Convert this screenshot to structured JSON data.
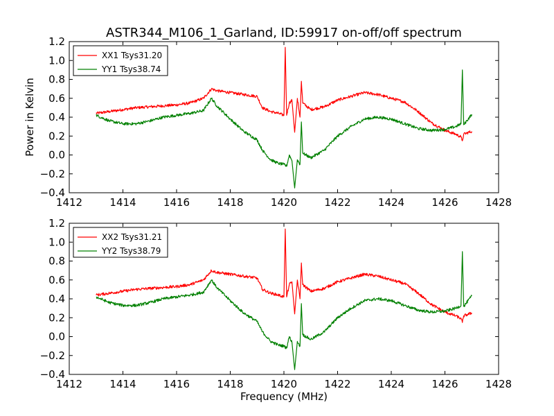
{
  "figure": {
    "title": "ASTR344_M106_1_Garland, ID:59917 on-off/off spectrum",
    "xlabel": "Frequency (MHz)",
    "ylabel": "Power in Kelvin"
  },
  "chart_data": [
    {
      "type": "line",
      "title": "ASTR344_M106_1_Garland, ID:59917 on-off/off spectrum",
      "xlabel": "",
      "ylabel": "Power in Kelvin",
      "xlim": [
        1412,
        1428
      ],
      "ylim": [
        -0.4,
        1.2
      ],
      "xticks": [
        "1412",
        "1414",
        "1416",
        "1418",
        "1420",
        "1422",
        "1424",
        "1426",
        "1428"
      ],
      "yticks": [
        "−0.4",
        "−0.2",
        "0.0",
        "0.2",
        "0.4",
        "0.6",
        "0.8",
        "1.0",
        "1.2"
      ],
      "grid": false,
      "legend_position": "top-left",
      "series": [
        {
          "name": "XX1 Tsys31.20",
          "color": "#ff0000",
          "x": [
            1413.0,
            1413.5,
            1414.0,
            1414.5,
            1415.0,
            1415.5,
            1416.0,
            1416.5,
            1417.0,
            1417.3,
            1417.5,
            1418.0,
            1418.5,
            1419.0,
            1419.2,
            1419.5,
            1419.8,
            1420.0,
            1420.05,
            1420.1,
            1420.2,
            1420.3,
            1420.4,
            1420.5,
            1420.6,
            1420.65,
            1420.7,
            1421.0,
            1421.5,
            1422.0,
            1422.5,
            1423.0,
            1423.5,
            1424.0,
            1424.5,
            1425.0,
            1425.5,
            1426.0,
            1426.4,
            1426.6,
            1426.65,
            1426.7,
            1427.0
          ],
          "y": [
            0.44,
            0.46,
            0.48,
            0.5,
            0.51,
            0.52,
            0.53,
            0.55,
            0.6,
            0.7,
            0.68,
            0.66,
            0.64,
            0.62,
            0.5,
            0.46,
            0.44,
            0.42,
            1.14,
            0.42,
            0.55,
            0.58,
            0.24,
            0.6,
            0.4,
            0.78,
            0.55,
            0.48,
            0.51,
            0.58,
            0.62,
            0.66,
            0.64,
            0.6,
            0.56,
            0.46,
            0.34,
            0.26,
            0.22,
            0.19,
            0.15,
            0.22,
            0.25
          ]
        },
        {
          "name": "YY1 Tsys38.74",
          "color": "#008000",
          "x": [
            1413.0,
            1413.5,
            1414.0,
            1414.5,
            1415.0,
            1415.5,
            1416.0,
            1416.5,
            1417.0,
            1417.3,
            1417.5,
            1418.0,
            1418.5,
            1419.0,
            1419.2,
            1419.5,
            1419.8,
            1420.0,
            1420.1,
            1420.2,
            1420.3,
            1420.4,
            1420.5,
            1420.6,
            1420.65,
            1420.7,
            1421.0,
            1421.5,
            1422.0,
            1422.5,
            1423.0,
            1423.5,
            1424.0,
            1424.5,
            1425.0,
            1425.5,
            1426.0,
            1426.4,
            1426.6,
            1426.65,
            1426.7,
            1427.0
          ],
          "y": [
            0.42,
            0.36,
            0.33,
            0.33,
            0.36,
            0.4,
            0.42,
            0.44,
            0.47,
            0.6,
            0.52,
            0.38,
            0.25,
            0.16,
            0.05,
            -0.05,
            -0.09,
            -0.1,
            -0.12,
            0.0,
            -0.06,
            -0.35,
            -0.05,
            -0.1,
            0.35,
            0.02,
            -0.03,
            0.05,
            0.2,
            0.3,
            0.38,
            0.4,
            0.38,
            0.33,
            0.28,
            0.26,
            0.27,
            0.3,
            0.33,
            0.9,
            0.32,
            0.43
          ]
        }
      ]
    },
    {
      "type": "line",
      "title": "",
      "xlabel": "Frequency (MHz)",
      "ylabel": "",
      "xlim": [
        1412,
        1428
      ],
      "ylim": [
        -0.4,
        1.2
      ],
      "xticks": [
        "1412",
        "1414",
        "1416",
        "1418",
        "1420",
        "1422",
        "1424",
        "1426",
        "1428"
      ],
      "yticks": [
        "−0.4",
        "−0.2",
        "0.0",
        "0.2",
        "0.4",
        "0.6",
        "0.8",
        "1.0",
        "1.2"
      ],
      "grid": false,
      "legend_position": "top-left",
      "series": [
        {
          "name": "XX2 Tsys31.21",
          "color": "#ff0000",
          "x": [
            1413.0,
            1413.5,
            1414.0,
            1414.5,
            1415.0,
            1415.5,
            1416.0,
            1416.5,
            1417.0,
            1417.3,
            1417.5,
            1418.0,
            1418.5,
            1419.0,
            1419.2,
            1419.5,
            1419.8,
            1420.0,
            1420.05,
            1420.1,
            1420.2,
            1420.3,
            1420.4,
            1420.5,
            1420.6,
            1420.65,
            1420.7,
            1421.0,
            1421.5,
            1422.0,
            1422.5,
            1423.0,
            1423.5,
            1424.0,
            1424.5,
            1425.0,
            1425.5,
            1426.0,
            1426.4,
            1426.6,
            1426.65,
            1426.7,
            1427.0
          ],
          "y": [
            0.44,
            0.46,
            0.48,
            0.5,
            0.51,
            0.52,
            0.53,
            0.55,
            0.6,
            0.7,
            0.68,
            0.66,
            0.64,
            0.62,
            0.5,
            0.46,
            0.44,
            0.42,
            1.14,
            0.42,
            0.55,
            0.58,
            0.24,
            0.6,
            0.4,
            0.78,
            0.55,
            0.48,
            0.51,
            0.58,
            0.62,
            0.66,
            0.64,
            0.6,
            0.56,
            0.46,
            0.34,
            0.26,
            0.22,
            0.19,
            0.15,
            0.22,
            0.25
          ]
        },
        {
          "name": "YY2 Tsys38.79",
          "color": "#008000",
          "x": [
            1413.0,
            1413.5,
            1414.0,
            1414.5,
            1415.0,
            1415.5,
            1416.0,
            1416.5,
            1417.0,
            1417.3,
            1417.5,
            1418.0,
            1418.5,
            1419.0,
            1419.2,
            1419.5,
            1419.8,
            1420.0,
            1420.1,
            1420.2,
            1420.3,
            1420.4,
            1420.5,
            1420.6,
            1420.65,
            1420.7,
            1421.0,
            1421.5,
            1422.0,
            1422.5,
            1423.0,
            1423.5,
            1424.0,
            1424.5,
            1425.0,
            1425.5,
            1426.0,
            1426.4,
            1426.6,
            1426.65,
            1426.7,
            1427.0
          ],
          "y": [
            0.42,
            0.36,
            0.33,
            0.33,
            0.36,
            0.4,
            0.42,
            0.44,
            0.47,
            0.6,
            0.52,
            0.38,
            0.25,
            0.16,
            0.05,
            -0.05,
            -0.09,
            -0.1,
            -0.12,
            0.0,
            -0.06,
            -0.35,
            -0.05,
            -0.1,
            0.35,
            0.02,
            -0.03,
            0.05,
            0.2,
            0.3,
            0.38,
            0.4,
            0.38,
            0.33,
            0.28,
            0.26,
            0.27,
            0.3,
            0.33,
            0.9,
            0.32,
            0.43
          ]
        }
      ]
    }
  ]
}
